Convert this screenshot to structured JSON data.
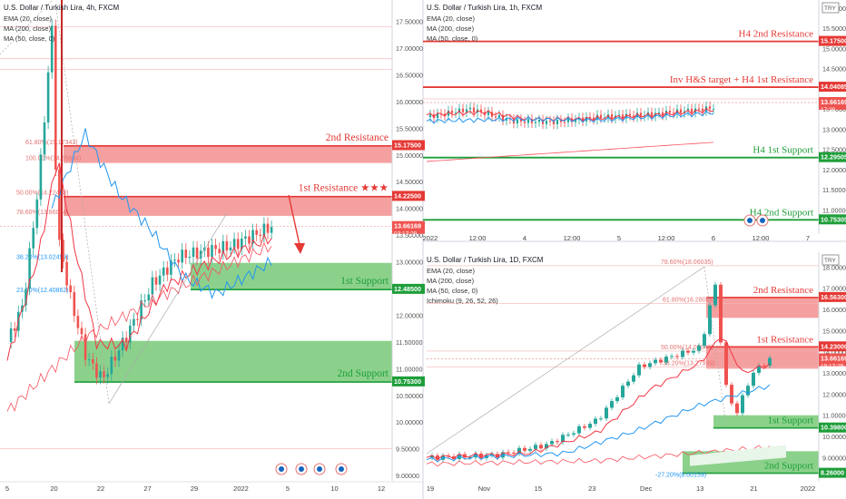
{
  "colors": {
    "up": "#26a69a",
    "down": "#ef5350",
    "ema": "#f23645",
    "ma200": "#f7525f",
    "ma50": "#2196f3",
    "res_zone": "#f4a0a0",
    "sup_zone": "#8bd18b",
    "res_line": "#e53935",
    "sup_line": "#1e9e3a",
    "price_tag": "#ef5350",
    "fib": "#e57373"
  },
  "charts": [
    {
      "title": "U.S. Dollar / Turkish Lira, 4h, FXCM",
      "indicators": [
        "EMA (20, close)",
        "MA (200, close)",
        "MA (50, close, 0)"
      ],
      "x_ticks": [
        "5",
        "20",
        "22",
        "27",
        "29",
        "2022",
        "5",
        "10",
        "12"
      ],
      "y_ticks": [
        "17.50000",
        "17.00000",
        "16.50000",
        "16.00000",
        "15.50000",
        "15.00000",
        "14.50000",
        "14.00000",
        "13.50000",
        "13.00000",
        "12.50000",
        "12.00000",
        "11.50000",
        "11.00000",
        "10.50000",
        "10.00000",
        "9.50000",
        "9.00000"
      ],
      "tags": [
        {
          "label": "15.17500",
          "kind": "res"
        },
        {
          "label": "14.22500",
          "kind": "res"
        },
        {
          "label": "13.66169",
          "kind": "price",
          "time": "03:17:29"
        },
        {
          "label": "12.48500",
          "kind": "sup"
        },
        {
          "label": "10.75300",
          "kind": "sup"
        }
      ],
      "zones": [
        {
          "label": "2nd Resistance",
          "kind": "res"
        },
        {
          "label": "1st Resistance ★★★",
          "kind": "res"
        },
        {
          "label": "1st Support",
          "kind": "sup"
        },
        {
          "label": "2nd Support",
          "kind": "sup"
        }
      ],
      "fibs": [
        "61.80%(15.17343)",
        "100.00%(14.85644)",
        "50.00%(14.22433)",
        "78.60%(13.86054)",
        "38.20%(13.02499)",
        "23.60%(12.40862)"
      ]
    },
    {
      "title": "U.S. Dollar / Turkish Lira, 1h, FXCM",
      "indicators": [
        "EMA (20, close)",
        "MA (200, close)",
        "MA (50, close, 0)"
      ],
      "currency": "TRY",
      "x_ticks": [
        "2022",
        "12:00",
        "4",
        "12:00",
        "5",
        "12:00",
        "6",
        "12:00",
        "7"
      ],
      "y_ticks": [
        "16.00000",
        "15.50000",
        "15.00000",
        "14.50000",
        "14.00000",
        "13.50000",
        "13.00000",
        "12.50000",
        "12.00000",
        "11.50000",
        "11.00000"
      ],
      "tags": [
        {
          "label": "15.17500",
          "kind": "res"
        },
        {
          "label": "14.04085",
          "kind": "res"
        },
        {
          "label": "13.66169",
          "kind": "price",
          "time": "17:29"
        },
        {
          "label": "12.29505",
          "kind": "sup"
        },
        {
          "label": "10.75305",
          "kind": "sup"
        }
      ],
      "lines": [
        {
          "label": "H4 2nd Resistance",
          "kind": "res"
        },
        {
          "label": "Inv H&S target + H4 1st Resistance",
          "kind": "res"
        },
        {
          "label": "H4 1st Support",
          "kind": "sup"
        },
        {
          "label": "H4 2nd Support",
          "kind": "sup"
        }
      ]
    },
    {
      "title": "U.S. Dollar / Turkish Lira, 1D, FXCM",
      "indicators": [
        "EMA (20, close)",
        "MA (200, close)",
        "MA (50, close, 0)",
        "Ichimoku (9, 26, 52, 26)"
      ],
      "currency": "TRY",
      "x_ticks": [
        "19",
        "Nov",
        "15",
        "23",
        "Dec",
        "13",
        "21",
        "2022"
      ],
      "y_ticks": [
        "18.00000",
        "17.00000",
        "16.00000",
        "15.00000",
        "14.00000",
        "13.00000",
        "12.00000",
        "11.00000",
        "10.00000",
        "9.00000"
      ],
      "tags": [
        {
          "label": "16.56300",
          "kind": "res"
        },
        {
          "label": "14.23000",
          "kind": "res"
        },
        {
          "label": "13.66169",
          "kind": "price",
          "time": "19:17:29"
        },
        {
          "label": "10.39800",
          "kind": "sup"
        },
        {
          "label": "8.26000",
          "kind": "sup"
        }
      ],
      "zones": [
        {
          "label": "2nd Resistance",
          "kind": "res"
        },
        {
          "label": "1st Resistance",
          "kind": "res"
        },
        {
          "label": "1st Support",
          "kind": "sup"
        },
        {
          "label": "2nd Support",
          "kind": "sup"
        }
      ],
      "fibs": [
        "78.60%(18.06035)",
        "61.80%(16.28088)",
        "50.00%(14.03048)",
        "38.20%(13.27999)",
        "-27.20%(8.00159)"
      ]
    }
  ],
  "chart_data": [
    {
      "type": "line",
      "title": "U.S. Dollar / Turkish Lira, 4h, FXCM",
      "x": [
        "5",
        "20",
        "22",
        "27",
        "29",
        "2022",
        "5",
        "10"
      ],
      "series": [
        {
          "name": "EMA (20, close)",
          "values": [
            12.0,
            16.0,
            13.5,
            11.0,
            11.8,
            13.1,
            13.4,
            null
          ]
        },
        {
          "name": "MA (50, close, 0)",
          "values": [
            null,
            15.5,
            14.8,
            13.6,
            13.0,
            12.9,
            13.0,
            null
          ]
        }
      ],
      "ylim": [
        8.9,
        18.0
      ]
    },
    {
      "type": "line",
      "title": "U.S. Dollar / Turkish Lira, 1h, FXCM",
      "x": [
        "2022",
        "12:00",
        "4",
        "12:00",
        "5",
        "12:00",
        "6"
      ],
      "series": [
        {
          "name": "EMA (20, close)",
          "values": [
            13.4,
            13.5,
            13.3,
            13.45,
            13.5,
            13.6,
            13.65
          ]
        }
      ],
      "ylim": [
        10.5,
        16.2
      ]
    },
    {
      "type": "line",
      "title": "U.S. Dollar / Turkish Lira, 1D, FXCM",
      "x": [
        "19",
        "Nov",
        "15",
        "23",
        "Dec",
        "13",
        "21",
        "2022"
      ],
      "series": [
        {
          "name": "EMA (20, close)",
          "values": [
            9.4,
            9.9,
            10.8,
            12.3,
            13.7,
            16.0,
            13.0,
            13.5
          ]
        }
      ],
      "ylim": [
        8.0,
        18.6
      ]
    }
  ]
}
